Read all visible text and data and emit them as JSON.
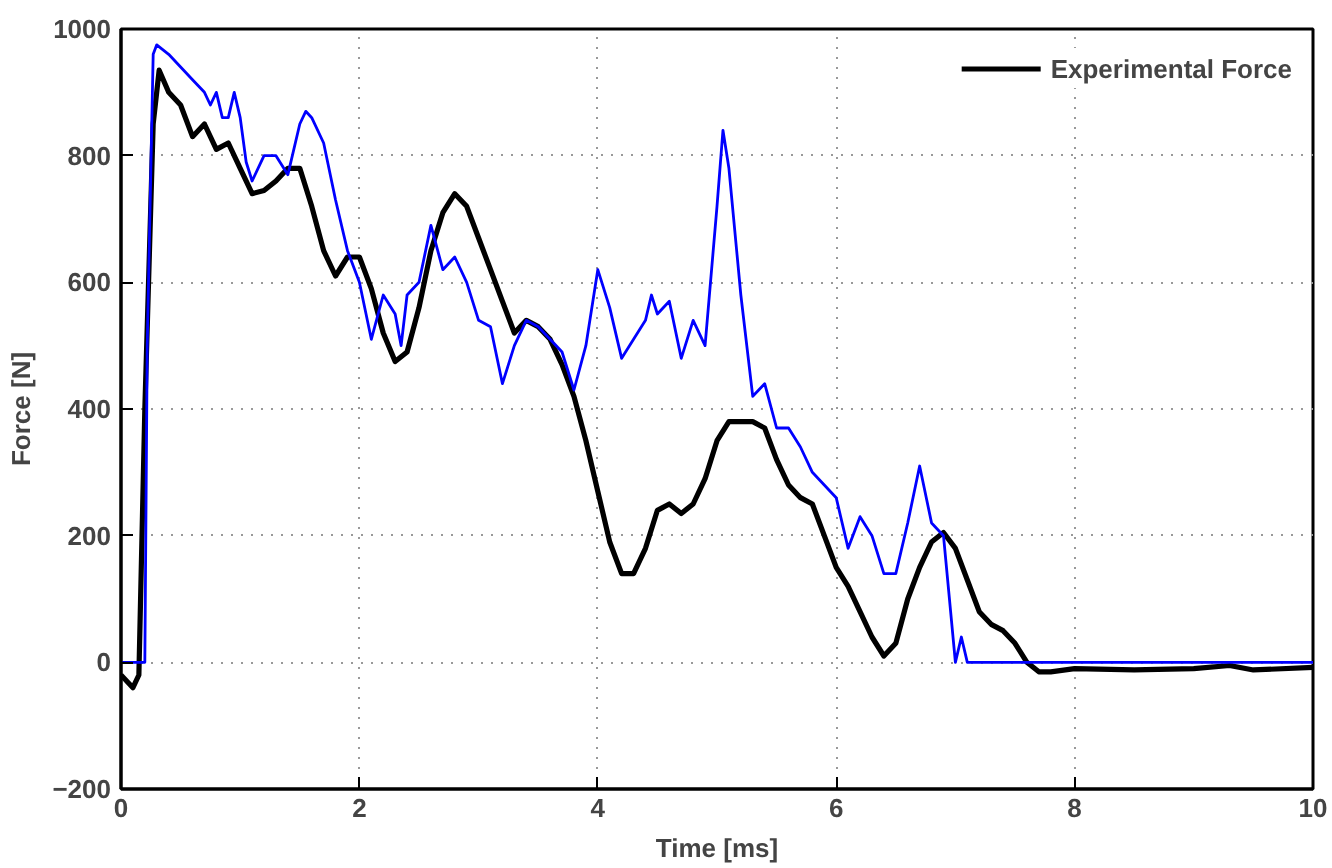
{
  "chart_data": {
    "type": "line",
    "xlabel": "Time [ms]",
    "ylabel": "Force [N]",
    "xlim": [
      0,
      10
    ],
    "ylim": [
      -200,
      1000
    ],
    "xticks": [
      0,
      2,
      4,
      6,
      8,
      10
    ],
    "yticks": [
      -200,
      0,
      200,
      400,
      600,
      800,
      1000
    ],
    "grid": true,
    "legend": "top right",
    "line_style": "solid",
    "marker": "none",
    "series": [
      {
        "name": "Experimental Force",
        "color": "#000000",
        "x": [
          0,
          0.1,
          0.15,
          0.2,
          0.27,
          0.32,
          0.4,
          0.5,
          0.6,
          0.7,
          0.8,
          0.9,
          1.0,
          1.1,
          1.2,
          1.3,
          1.4,
          1.5,
          1.6,
          1.7,
          1.8,
          1.9,
          2.0,
          2.1,
          2.2,
          2.3,
          2.4,
          2.5,
          2.6,
          2.7,
          2.8,
          2.9,
          3.0,
          3.1,
          3.2,
          3.3,
          3.4,
          3.5,
          3.6,
          3.7,
          3.8,
          3.9,
          4.0,
          4.1,
          4.2,
          4.3,
          4.4,
          4.5,
          4.6,
          4.7,
          4.8,
          4.9,
          5.0,
          5.1,
          5.2,
          5.3,
          5.4,
          5.5,
          5.6,
          5.7,
          5.8,
          5.9,
          6.0,
          6.1,
          6.2,
          6.3,
          6.4,
          6.5,
          6.6,
          6.7,
          6.8,
          6.9,
          7.0,
          7.1,
          7.2,
          7.3,
          7.4,
          7.5,
          7.6,
          7.7,
          7.8,
          8.0,
          8.5,
          9.0,
          9.3,
          9.5,
          10.0
        ],
        "values": [
          -20,
          -40,
          -20,
          400,
          850,
          935,
          900,
          880,
          830,
          850,
          810,
          820,
          780,
          740,
          745,
          760,
          780,
          780,
          720,
          650,
          610,
          640,
          640,
          590,
          520,
          475,
          490,
          560,
          650,
          710,
          740,
          720,
          670,
          620,
          570,
          520,
          540,
          530,
          510,
          470,
          420,
          350,
          270,
          190,
          140,
          140,
          180,
          240,
          250,
          235,
          250,
          290,
          350,
          380,
          380,
          380,
          370,
          320,
          280,
          260,
          250,
          200,
          150,
          120,
          80,
          40,
          10,
          30,
          100,
          150,
          190,
          205,
          180,
          130,
          80,
          60,
          50,
          30,
          0,
          -15,
          -15,
          -10,
          -12,
          -10,
          -5,
          -12,
          -8
        ]
      },
      {
        "color": "#0000ff",
        "x": [
          0,
          0.2,
          0.22,
          0.27,
          0.3,
          0.4,
          0.5,
          0.6,
          0.7,
          0.75,
          0.8,
          0.85,
          0.9,
          0.95,
          1.0,
          1.05,
          1.1,
          1.2,
          1.3,
          1.4,
          1.5,
          1.55,
          1.6,
          1.7,
          1.8,
          1.9,
          2.0,
          2.1,
          2.2,
          2.3,
          2.35,
          2.4,
          2.5,
          2.6,
          2.7,
          2.8,
          2.9,
          3.0,
          3.1,
          3.2,
          3.3,
          3.4,
          3.5,
          3.6,
          3.7,
          3.8,
          3.9,
          4.0,
          4.1,
          4.2,
          4.3,
          4.4,
          4.45,
          4.5,
          4.6,
          4.7,
          4.8,
          4.9,
          5.0,
          5.05,
          5.1,
          5.2,
          5.3,
          5.4,
          5.5,
          5.6,
          5.7,
          5.8,
          5.9,
          6.0,
          6.1,
          6.2,
          6.3,
          6.4,
          6.5,
          6.6,
          6.7,
          6.8,
          6.9,
          7.0,
          7.05,
          7.1,
          10.0
        ],
        "values": [
          0,
          0,
          500,
          960,
          975,
          960,
          940,
          920,
          900,
          880,
          900,
          860,
          860,
          900,
          860,
          790,
          760,
          800,
          800,
          770,
          850,
          870,
          860,
          820,
          730,
          650,
          600,
          510,
          580,
          550,
          500,
          580,
          600,
          690,
          620,
          640,
          600,
          540,
          530,
          440,
          500,
          540,
          530,
          510,
          490,
          430,
          500,
          620,
          560,
          480,
          510,
          540,
          580,
          550,
          570,
          480,
          540,
          500,
          720,
          840,
          780,
          580,
          420,
          440,
          370,
          370,
          340,
          300,
          280,
          260,
          180,
          230,
          200,
          140,
          140,
          220,
          310,
          220,
          200,
          0,
          40,
          0,
          0
        ]
      }
    ]
  }
}
